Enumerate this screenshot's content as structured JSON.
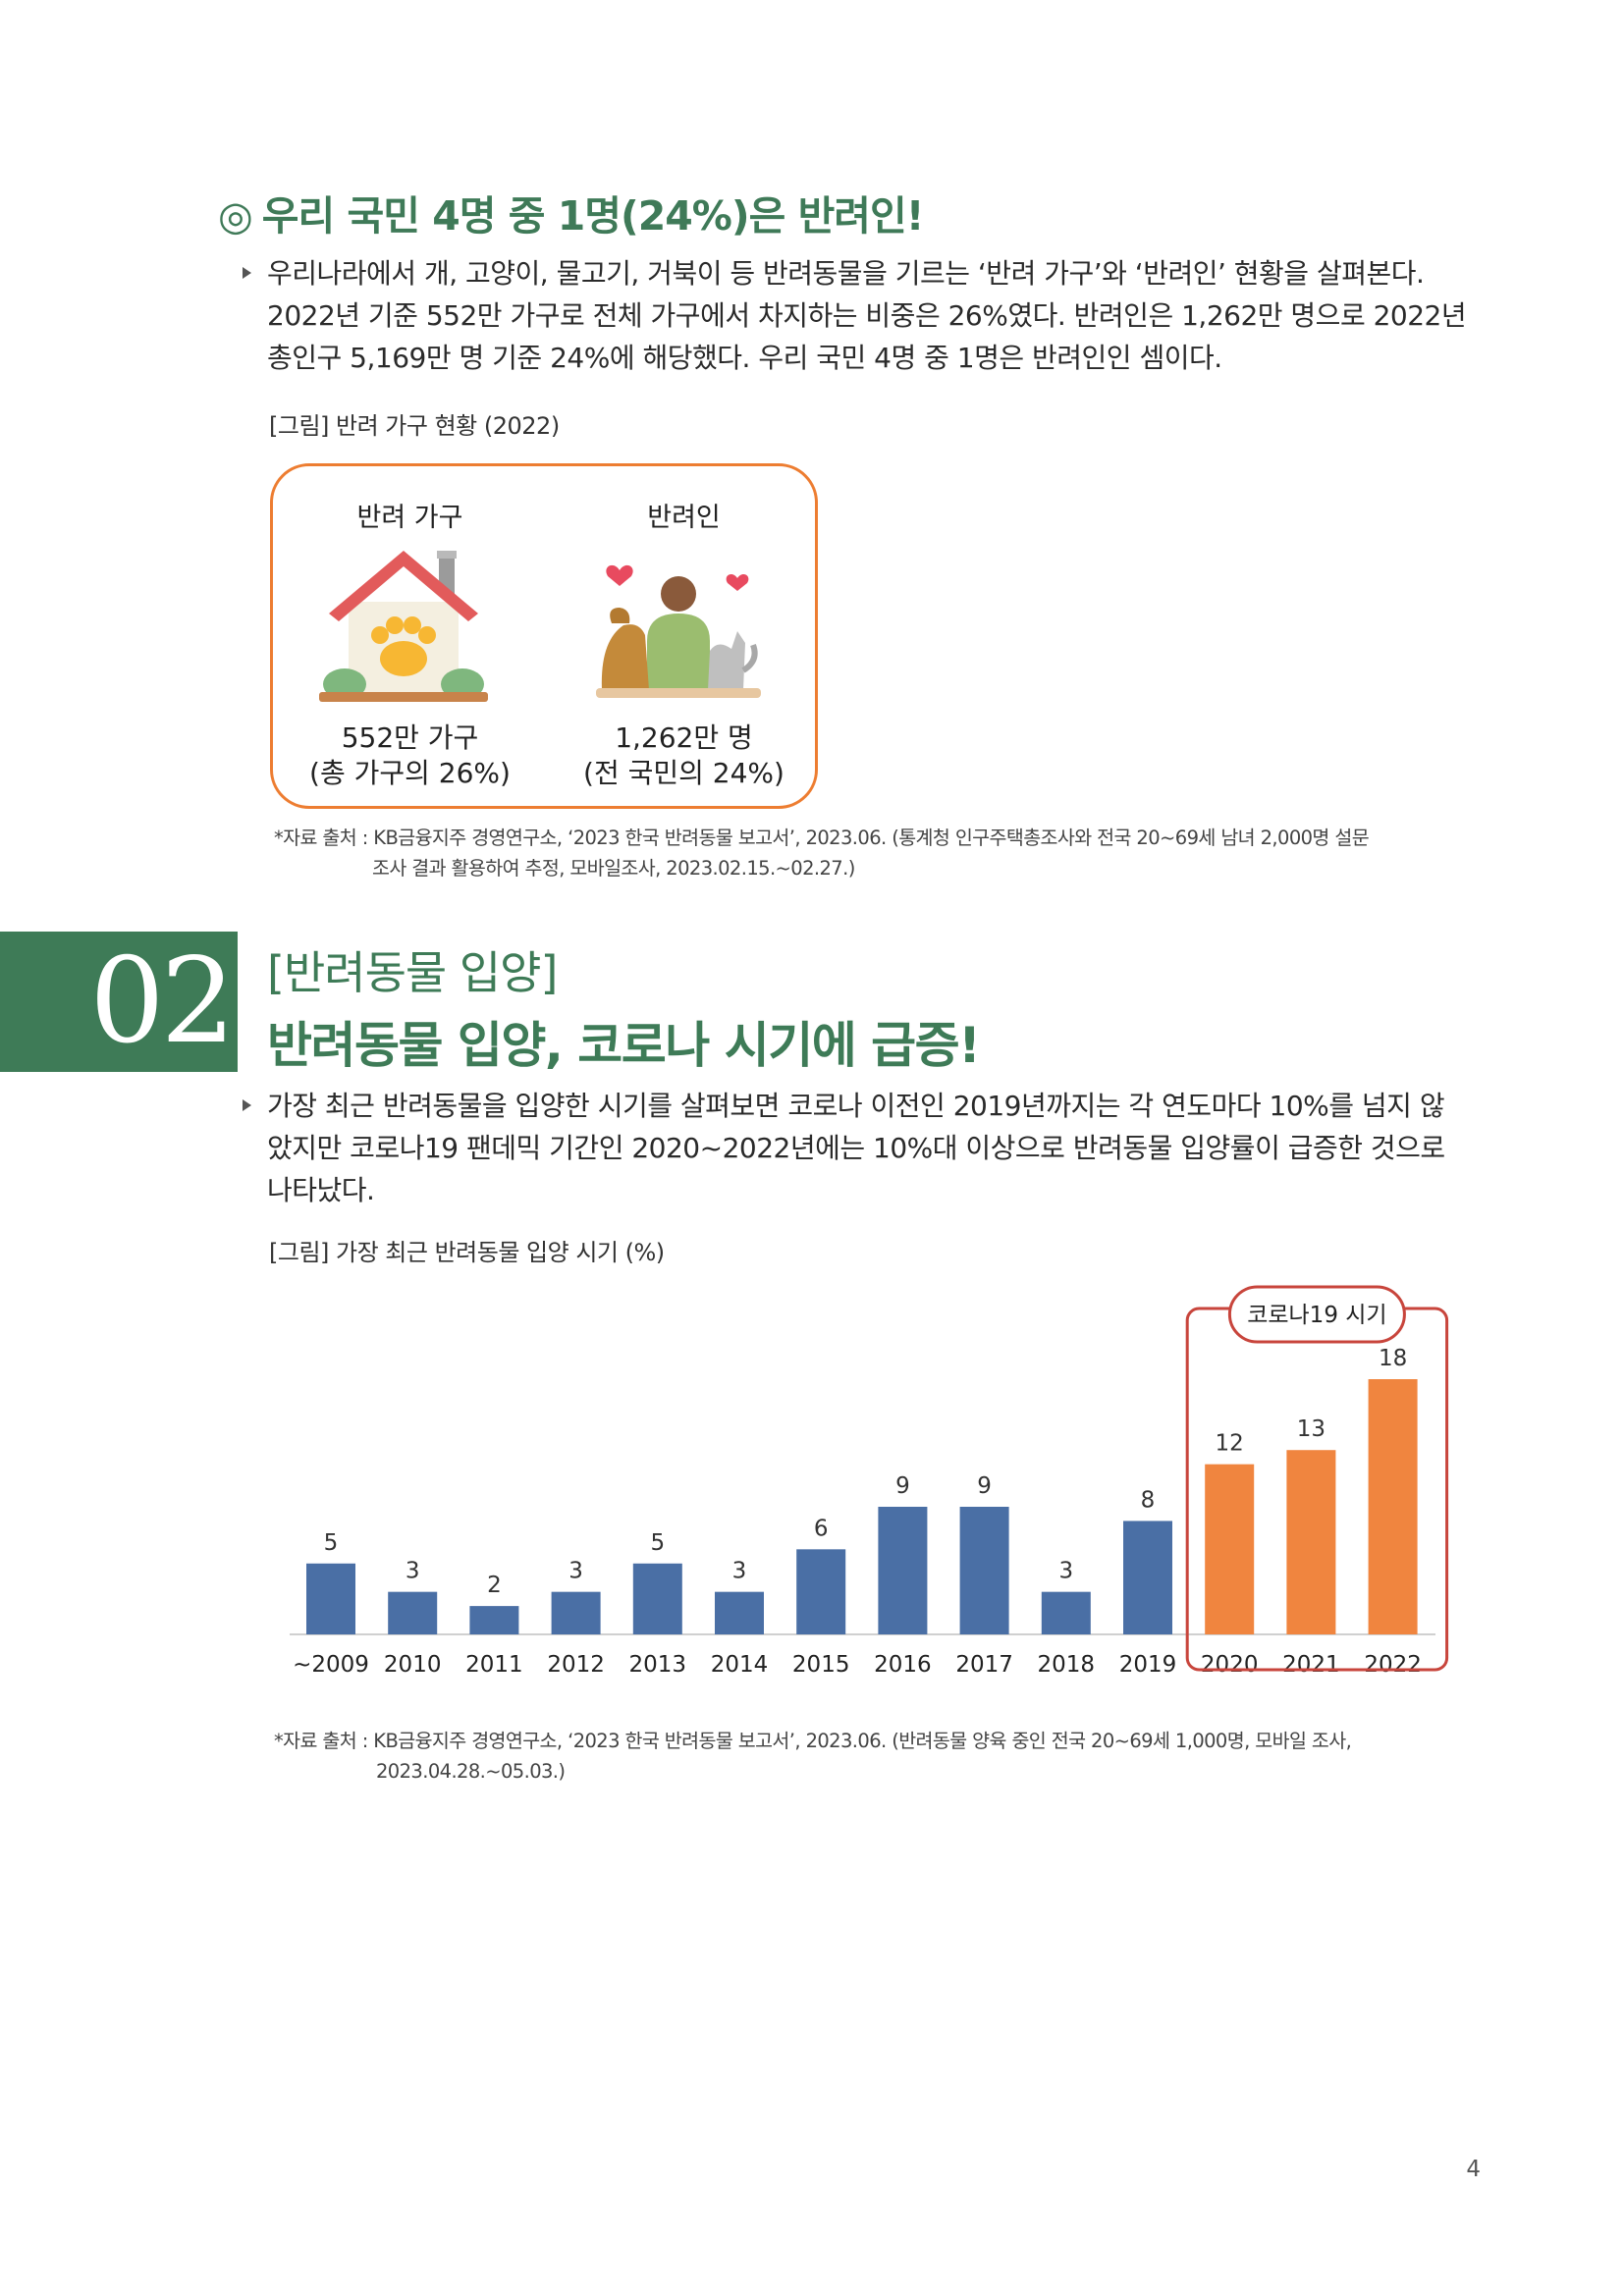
{
  "section1": {
    "mark": "◎",
    "title": "우리 국민 4명 중 1명(24%)은 반려인!",
    "paragraph": [
      "우리나라에서 개, 고양이, 물고기, 거북이 등 반려동물을 기르는 ‘반려 가구’와 ‘반려인’ 현황을 살펴본다.",
      "2022년 기준 552만 가구로 전체 가구에서 차지하는 비중은 26%였다. 반려인은 1,262만 명으로 2022년",
      "총인구 5,169만 명 기준 24%에 해당했다. 우리 국민 4명 중 1명은 반려인인 셈이다."
    ],
    "figure_caption": "[그림] 반려 가구 현황 (2022)",
    "infographic": {
      "household": {
        "label": "반려 가구",
        "icon": "house-paw-icon",
        "value": "552만 가구",
        "share": "(총 가구의 26%)"
      },
      "person": {
        "label": "반려인",
        "icon": "person-with-pets-icon",
        "value": "1,262만 명",
        "share": "(전 국민의 24%)"
      }
    },
    "source": [
      "*자료 출처 : KB금융지주 경영연구소, ‘2023 한국 반려동물 보고서’, 2023.06. (통계청 인구주택총조사와 전국 20~69세 남녀 2,000명 설문",
      "조사 결과 활용하여 추정, 모바일조사, 2023.02.15.~02.27.)"
    ]
  },
  "section2": {
    "number": "02",
    "subtitle": "[반려동물 입양]",
    "title": "반려동물 입양, 코로나 시기에 급증!",
    "paragraph": [
      "가장 최근 반려동물을 입양한 시기를 살펴보면 코로나 이전인 2019년까지는 각 연도마다 10%를 넘지 않",
      "았지만 코로나19 팬데믹 기간인 2020~2022년에는 10%대 이상으로 반려동물 입양률이 급증한 것으로",
      "나타났다."
    ],
    "figure_caption": "[그림] 가장 최근 반려동물 입양 시기 (%)",
    "source": [
      "*자료 출처 : KB금융지주 경영연구소, ‘2023 한국 반려동물 보고서’, 2023.06. (반려동물 양육 중인 전국 20~69세 1,000명, 모바일 조사,",
      "2023.04.28.~05.03.)"
    ]
  },
  "chart_data": {
    "type": "bar",
    "categories": [
      "~2009",
      "2010",
      "2011",
      "2012",
      "2013",
      "2014",
      "2015",
      "2016",
      "2017",
      "2018",
      "2019",
      "2020",
      "2021",
      "2022"
    ],
    "values": [
      5,
      3,
      2,
      3,
      5,
      3,
      6,
      9,
      9,
      3,
      8,
      12,
      13,
      18
    ],
    "highlight": {
      "label": "코로나19 시기",
      "categories": [
        "2020",
        "2021",
        "2022"
      ]
    },
    "colors": {
      "default": "#4a6fa5",
      "highlight": "#f0853f",
      "frame": "#c8453c"
    },
    "ylim": [
      0,
      18
    ],
    "grid": false,
    "legend": "none"
  },
  "page_number": "4",
  "colors": {
    "accent_green": "#3e7b57",
    "accent_orange": "#ed7d31"
  }
}
